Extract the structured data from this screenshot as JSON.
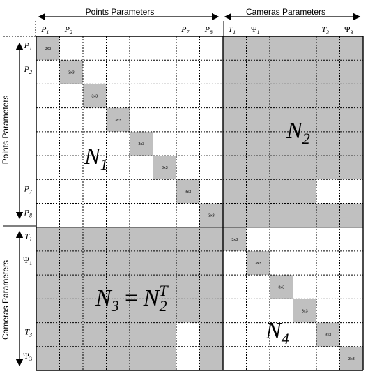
{
  "headers": {
    "points": "Points Parameters",
    "cameras": "Cameras Parameters"
  },
  "params": [
    {
      "base": "P",
      "sub": "1",
      "italic": true
    },
    {
      "base": "P",
      "sub": "2",
      "italic": true
    },
    {
      "base": "",
      "sub": "",
      "italic": true
    },
    {
      "base": "",
      "sub": "",
      "italic": true
    },
    {
      "base": "",
      "sub": "",
      "italic": true
    },
    {
      "base": "",
      "sub": "",
      "italic": true
    },
    {
      "base": "P",
      "sub": "7",
      "italic": true
    },
    {
      "base": "P",
      "sub": "8",
      "italic": true
    },
    {
      "base": "T",
      "sub": "1",
      "italic": true
    },
    {
      "base": "Ψ",
      "sub": "1",
      "italic": false
    },
    {
      "base": "",
      "sub": "",
      "italic": true
    },
    {
      "base": "",
      "sub": "",
      "italic": true
    },
    {
      "base": "T",
      "sub": "3",
      "italic": true
    },
    {
      "base": "Ψ",
      "sub": "3",
      "italic": false
    }
  ],
  "block_label": "3x3",
  "matrix": {
    "size": 14,
    "points_count": 8,
    "colors": {
      "shaded": "#c0c0c0",
      "white": "#ffffff",
      "grid": "#000000"
    },
    "white_cells_in_N2": [
      [
        6,
        12
      ],
      [
        6,
        13
      ]
    ],
    "white_cells_in_N3": [
      [
        12,
        6
      ],
      [
        13,
        6
      ]
    ]
  },
  "blocks": {
    "N1": {
      "base": "N",
      "sub": "1",
      "sup": ""
    },
    "N2": {
      "base": "N",
      "sub": "2",
      "sup": ""
    },
    "N3": {
      "base": "N",
      "sub": "3",
      "sup": "",
      "eq": "=",
      "rhs_base": "N",
      "rhs_sub": "2",
      "rhs_sup": "T"
    },
    "N4": {
      "base": "N",
      "sub": "4",
      "sup": ""
    }
  }
}
